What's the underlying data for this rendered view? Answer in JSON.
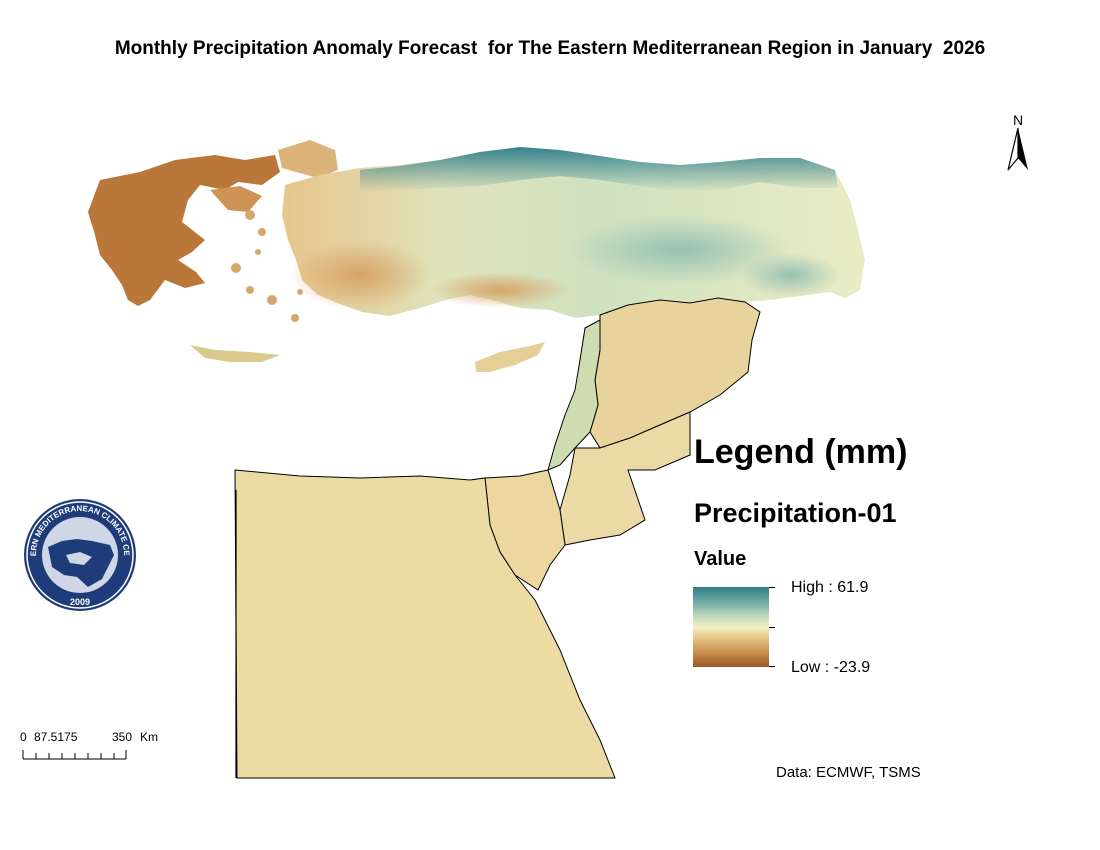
{
  "title": "Monthly Precipitation Anomaly Forecast  for The Eastern Mediterranean Region in January  2026",
  "legend": {
    "title": "Legend (mm)",
    "layer": "Precipitation-01",
    "field": "Value",
    "high_label": "High : 61.9",
    "low_label": "Low : -23.9",
    "high_value": 61.9,
    "low_value": -23.9,
    "colors": {
      "high": "#2f7e8c",
      "mid": "#f3f0c4",
      "low": "#9a5a24"
    }
  },
  "north_arrow": {
    "label": "N"
  },
  "scale_bar": {
    "ticks": [
      "0",
      "87.5175",
      "350"
    ],
    "unit": "Km"
  },
  "credit": "Data: ECMWF, TSMS",
  "logo": {
    "top_text": "EASTERN MEDITERRANEAN CLIMATE CENTRE",
    "year": "2009"
  }
}
